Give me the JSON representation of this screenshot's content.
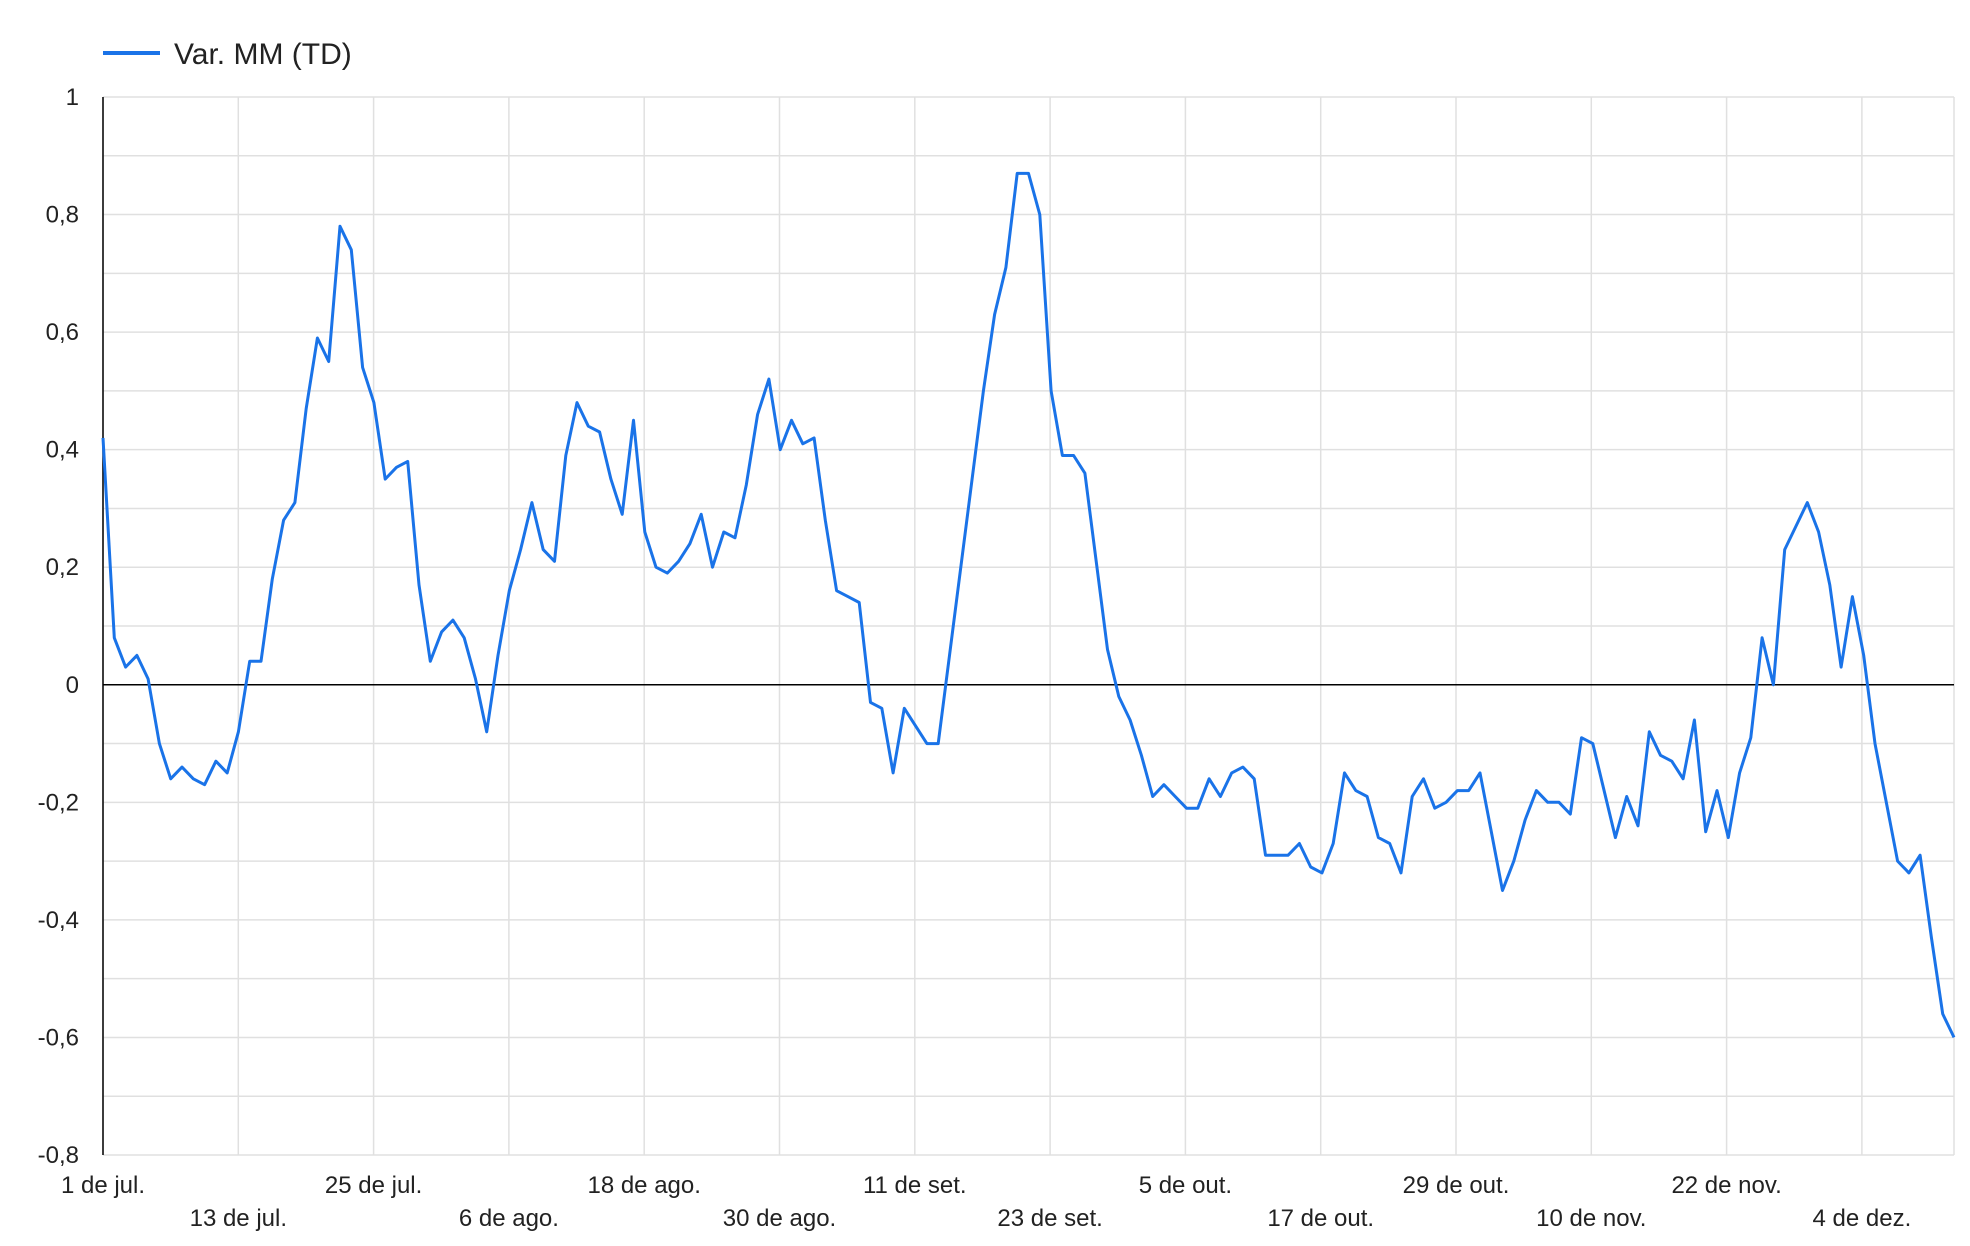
{
  "colors": {
    "series": "#1a73e8",
    "grid": "#e0e0e0",
    "axis": "#000000",
    "zero_line": "#000000"
  },
  "chart_data": {
    "type": "line",
    "title": "",
    "xlabel": "",
    "ylabel": "",
    "legend_position": "top-left",
    "grid": true,
    "ylim": [
      -0.8,
      1
    ],
    "y_ticks": [
      1,
      0.8,
      0.6,
      0.4,
      0.2,
      0,
      -0.2,
      -0.4,
      -0.6,
      -0.8
    ],
    "y_tick_labels": [
      "1",
      "0,8",
      "0,6",
      "0,4",
      "0,2",
      "0",
      "-0,2",
      "-0,4",
      "-0,6",
      "-0,8"
    ],
    "x_tick_labels": [
      "1 de jul.",
      "13 de jul.",
      "25 de jul.",
      "6 de ago.",
      "18 de ago.",
      "30 de ago.",
      "11 de set.",
      "23 de set.",
      "5 de out.",
      "17 de out.",
      "29 de out.",
      "10 de nov.",
      "22 de nov.",
      "4 de dez."
    ],
    "x_start": "1 de jul.",
    "x_end": "14 de dez.",
    "series": [
      {
        "name": "Var. MM (TD)",
        "values": [
          0.42,
          0.08,
          0.03,
          0.05,
          0.01,
          -0.1,
          -0.16,
          -0.14,
          -0.16,
          -0.17,
          -0.13,
          -0.15,
          -0.08,
          0.04,
          0.04,
          0.18,
          0.28,
          0.31,
          0.47,
          0.59,
          0.55,
          0.78,
          0.74,
          0.54,
          0.48,
          0.35,
          0.37,
          0.38,
          0.17,
          0.04,
          0.09,
          0.11,
          0.08,
          0.01,
          -0.08,
          0.05,
          0.16,
          0.23,
          0.31,
          0.23,
          0.21,
          0.39,
          0.48,
          0.44,
          0.43,
          0.35,
          0.29,
          0.45,
          0.26,
          0.2,
          0.19,
          0.21,
          0.24,
          0.29,
          0.2,
          0.26,
          0.25,
          0.34,
          0.46,
          0.52,
          0.4,
          0.45,
          0.41,
          0.42,
          0.28,
          0.16,
          0.15,
          0.14,
          -0.03,
          -0.04,
          -0.15,
          -0.04,
          -0.07,
          -0.1,
          -0.1,
          0.05,
          0.2,
          0.35,
          0.5,
          0.63,
          0.71,
          0.87,
          0.87,
          0.8,
          0.5,
          0.39,
          0.39,
          0.36,
          0.21,
          0.06,
          -0.02,
          -0.06,
          -0.12,
          -0.19,
          -0.17,
          -0.19,
          -0.21,
          -0.21,
          -0.16,
          -0.19,
          -0.15,
          -0.14,
          -0.16,
          -0.29,
          -0.29,
          -0.29,
          -0.27,
          -0.31,
          -0.32,
          -0.27,
          -0.15,
          -0.18,
          -0.19,
          -0.26,
          -0.27,
          -0.32,
          -0.19,
          -0.16,
          -0.21,
          -0.2,
          -0.18,
          -0.18,
          -0.15,
          -0.25,
          -0.35,
          -0.3,
          -0.23,
          -0.18,
          -0.2,
          -0.2,
          -0.22,
          -0.09,
          -0.1,
          -0.18,
          -0.26,
          -0.19,
          -0.24,
          -0.08,
          -0.12,
          -0.13,
          -0.16,
          -0.06,
          -0.25,
          -0.18,
          -0.26,
          -0.15,
          -0.09,
          0.08,
          0.0,
          0.23,
          0.27,
          0.31,
          0.26,
          0.17,
          0.03,
          0.15,
          0.05,
          -0.1,
          -0.2,
          -0.3,
          -0.32,
          -0.29,
          -0.43,
          -0.56,
          -0.6
        ]
      }
    ]
  }
}
